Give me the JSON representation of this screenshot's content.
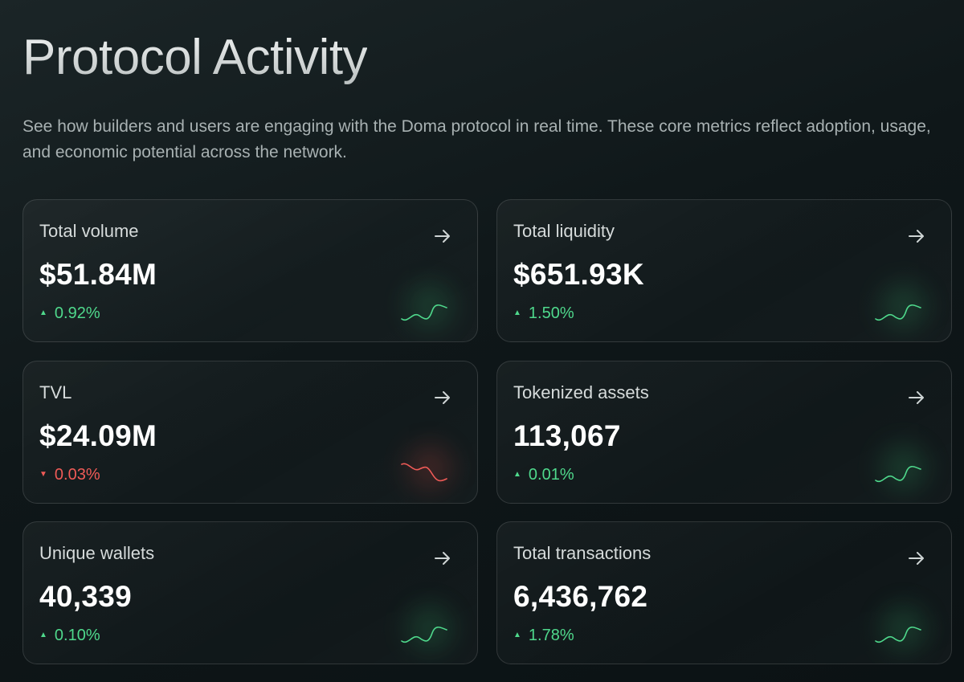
{
  "header": {
    "title": "Protocol Activity",
    "subtitle": "See how builders and users are engaging with the Doma protocol in real time. These core metrics reflect adoption, usage, and economic potential across the network."
  },
  "colors": {
    "positive": "#4fd98c",
    "negative": "#f05b57"
  },
  "metrics": [
    {
      "label": "Total volume",
      "value": "$51.84M",
      "change": "0.92%",
      "trend": "up",
      "arrow_icon": "arrow-right-icon",
      "trend_icon": "triangle-up-icon"
    },
    {
      "label": "Total liquidity",
      "value": "$651.93K",
      "change": "1.50%",
      "trend": "up",
      "arrow_icon": "arrow-right-icon",
      "trend_icon": "triangle-up-icon"
    },
    {
      "label": "TVL",
      "value": "$24.09M",
      "change": "0.03%",
      "trend": "down",
      "arrow_icon": "arrow-right-icon",
      "trend_icon": "triangle-down-icon"
    },
    {
      "label": "Tokenized assets",
      "value": "113,067",
      "change": "0.01%",
      "trend": "up",
      "arrow_icon": "arrow-right-icon",
      "trend_icon": "triangle-up-icon"
    },
    {
      "label": "Unique wallets",
      "value": "40,339",
      "change": "0.10%",
      "trend": "up",
      "arrow_icon": "arrow-right-icon",
      "trend_icon": "triangle-up-icon"
    },
    {
      "label": "Total transactions",
      "value": "6,436,762",
      "change": "1.78%",
      "trend": "up",
      "arrow_icon": "arrow-right-icon",
      "trend_icon": "triangle-up-icon"
    }
  ]
}
